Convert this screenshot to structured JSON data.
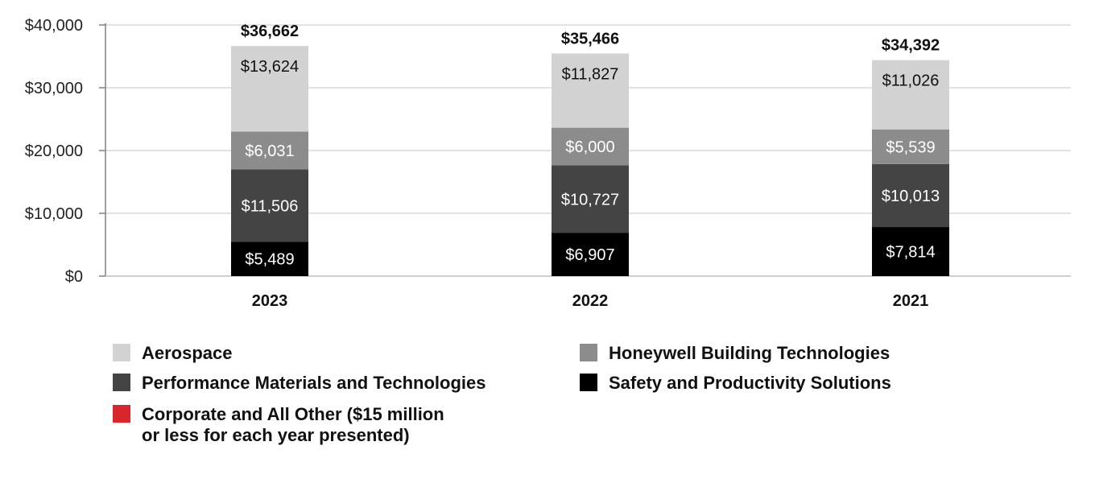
{
  "chart_data": {
    "type": "bar",
    "stacked": true,
    "title": "",
    "xlabel": "",
    "ylabel": "",
    "ylim": [
      0,
      40000
    ],
    "y_ticks": [
      0,
      10000,
      20000,
      30000,
      40000
    ],
    "y_tick_labels": [
      "$0",
      "$10,000",
      "$20,000",
      "$30,000",
      "$40,000"
    ],
    "grid": true,
    "categories": [
      "2023",
      "2022",
      "2021"
    ],
    "totals": [
      36662,
      35466,
      34392
    ],
    "total_labels": [
      "$36,662",
      "$35,466",
      "$34,392"
    ],
    "series": [
      {
        "name": "Safety and Productivity Solutions",
        "color": "#000000",
        "label_color": "#ffffff",
        "values": [
          5489,
          6907,
          7814
        ],
        "labels": [
          "$5,489",
          "$6,907",
          "$7,814"
        ]
      },
      {
        "name": "Performance Materials and Technologies",
        "color": "#444444",
        "label_color": "#ffffff",
        "values": [
          11506,
          10727,
          10013
        ],
        "labels": [
          "$11,506",
          "$10,727",
          "$10,013"
        ]
      },
      {
        "name": "Honeywell Building Technologies",
        "color": "#8c8c8c",
        "label_color": "#ffffff",
        "values": [
          6031,
          6000,
          5539
        ],
        "labels": [
          "$6,031",
          "$6,000",
          "$5,539"
        ]
      },
      {
        "name": "Aerospace",
        "color": "#d2d2d2",
        "label_color": "#111111",
        "values": [
          13624,
          11827,
          11026
        ],
        "labels": [
          "$13,624",
          "$11,827",
          "$11,026"
        ]
      }
    ],
    "legend": [
      {
        "label": "Aerospace",
        "color": "#d2d2d2"
      },
      {
        "label": "Honeywell Building Technologies",
        "color": "#8c8c8c"
      },
      {
        "label": "Performance Materials and Technologies",
        "color": "#444444"
      },
      {
        "label": "Safety and Productivity Solutions",
        "color": "#000000"
      },
      {
        "label": "Corporate and All Other ($15 million\nor less for each year presented)",
        "color": "#d9262c"
      }
    ]
  }
}
